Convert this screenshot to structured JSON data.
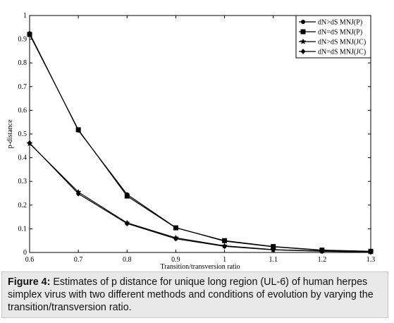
{
  "chart_data": {
    "type": "line",
    "title": "",
    "xlabel": "Transition/transversion ratio",
    "ylabel": "p-distance",
    "x": [
      0.6,
      0.7,
      0.8,
      0.9,
      1.0,
      1.1,
      1.2,
      1.3
    ],
    "xticks": [
      "0.6",
      "0.7",
      "0.8",
      "0.9",
      "1",
      "1.1",
      "1.2",
      "1.3"
    ],
    "yticks": [
      "0",
      "0.1",
      "0.2",
      "0.3",
      "0.4",
      "0.5",
      "0.6",
      "0.7",
      "0.8",
      "0.9",
      "1"
    ],
    "xlim": [
      0.6,
      1.3
    ],
    "ylim": [
      0,
      1
    ],
    "grid": false,
    "legend_position": "top-right",
    "series": [
      {
        "name": "dN>dS MNJ(P)",
        "marker": "circle",
        "values": [
          0.925,
          0.515,
          0.245,
          0.105,
          0.048,
          0.024,
          0.009,
          0.004
        ]
      },
      {
        "name": "dN=dS MNJ(P)",
        "marker": "square",
        "values": [
          0.92,
          0.518,
          0.238,
          0.104,
          0.05,
          0.025,
          0.01,
          0.005
        ]
      },
      {
        "name": "dN>dS MNJ(JC)",
        "marker": "star",
        "values": [
          0.46,
          0.255,
          0.125,
          0.062,
          0.028,
          0.012,
          0.006,
          0.003
        ]
      },
      {
        "name": "dN=dS MNJ(JC)",
        "marker": "diamond",
        "values": [
          0.462,
          0.248,
          0.122,
          0.058,
          0.026,
          0.011,
          0.005,
          0.002
        ]
      }
    ]
  },
  "caption": {
    "label": "Figure 4:",
    "text": " Estimates of p distance for unique long region (UL-6) of human herpes simplex virus with two different methods and conditions of evolution by varying the transition/transversion ratio."
  }
}
